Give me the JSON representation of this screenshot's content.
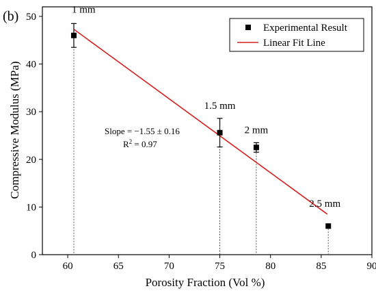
{
  "chart_data": {
    "type": "scatter",
    "panel_label": "(b)",
    "xlabel": "Porosity Fraction (Vol %)",
    "ylabel": "Compressive Modulus (MPa)",
    "xlim": [
      57.5,
      90
    ],
    "ylim": [
      0,
      52
    ],
    "xticks": [
      60,
      65,
      70,
      75,
      80,
      85,
      90
    ],
    "yticks": [
      0,
      10,
      20,
      30,
      40,
      50
    ],
    "grid": false,
    "legend_position": "top-right",
    "legend": {
      "experimental": "Experimental Result",
      "fit": "Linear Fit Line"
    },
    "series": [
      {
        "name": "Experimental Result",
        "points": [
          {
            "x": 60.6,
            "y": 46.0,
            "err": 2.5,
            "label": "1 mm"
          },
          {
            "x": 75.0,
            "y": 25.6,
            "err": 3.0,
            "label": "1.5 mm"
          },
          {
            "x": 78.6,
            "y": 22.5,
            "err": 1.0,
            "label": "2 mm"
          },
          {
            "x": 85.7,
            "y": 6.0,
            "err": 0,
            "label": "2.5 mm"
          }
        ]
      }
    ],
    "fit_line": {
      "name": "Linear Fit Line",
      "x": [
        60.6,
        85.6
      ],
      "y": [
        47.3,
        8.5
      ],
      "color": "#d42020"
    },
    "fit_stats": {
      "slope_text": "Slope = −1.55 ± 0.16",
      "r2_prefix": "R",
      "r2_sup": "2",
      "r2_value": " = 0.97"
    }
  }
}
